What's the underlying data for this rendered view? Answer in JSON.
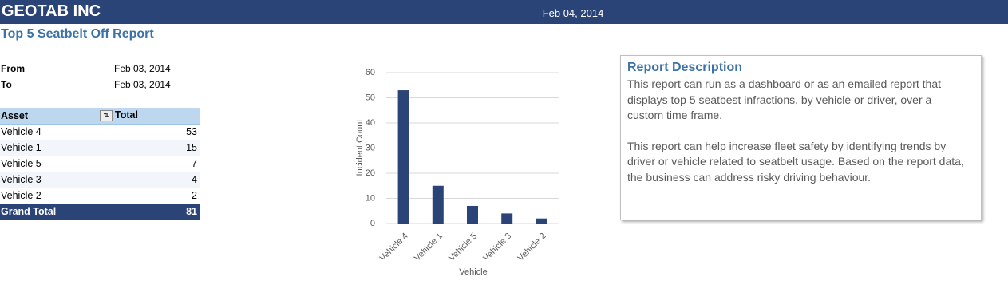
{
  "header": {
    "company": "GEOTAB INC",
    "date": "Feb 04, 2014"
  },
  "report_title": "Top 5 Seatbelt Off Report",
  "period": [
    {
      "label": "From",
      "value": "Feb 03, 2014"
    },
    {
      "label": "To",
      "value": "Feb 03, 2014"
    }
  ],
  "table": {
    "columns": [
      "Asset",
      "Total"
    ],
    "rows": [
      [
        "Vehicle 4",
        53
      ],
      [
        "Vehicle 1",
        15
      ],
      [
        "Vehicle 5",
        7
      ],
      [
        "Vehicle 3",
        4
      ],
      [
        "Vehicle 2",
        2
      ]
    ],
    "total": [
      "Grand Total",
      81
    ]
  },
  "chart_data": {
    "type": "bar",
    "categories": [
      "Vehicle 4",
      "Vehicle 1",
      "Vehicle 5",
      "Vehicle 3",
      "Vehicle 2"
    ],
    "values": [
      53,
      15,
      7,
      4,
      2
    ],
    "color": "#2b4478",
    "xlabel": "Vehicle",
    "ylabel": "Incident Count",
    "ylim": [
      0,
      60
    ],
    "yticks": [
      0,
      10,
      20,
      30,
      40,
      50,
      60
    ],
    "grid": true
  },
  "description": {
    "title": "Report Description",
    "paragraphs": [
      "This report can run as a dashboard or as an emailed report that displays top 5 seatbest infractions, by vehicle or driver, over a custom time frame.",
      "This report can help increase fleet safety by identifying trends by driver or vehicle related to seatbelt usage. Based on the report data, the business can address risky driving behaviour."
    ]
  }
}
